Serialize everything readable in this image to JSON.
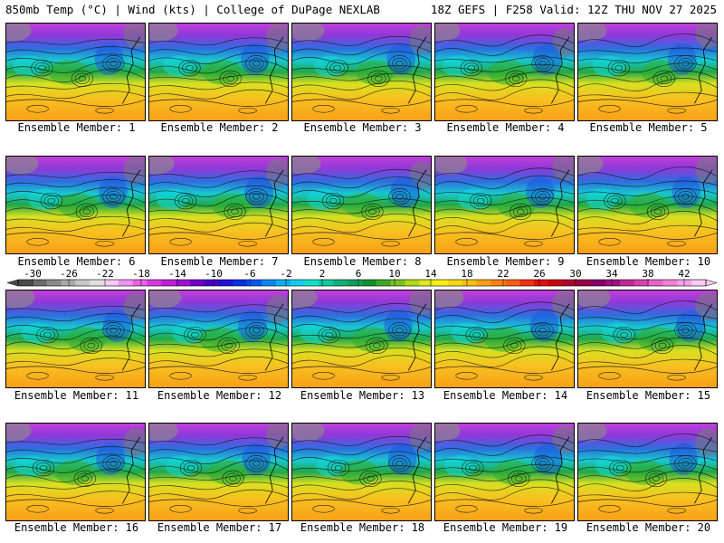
{
  "header": {
    "left": "850mb Temp (°C) | Wind (kts) | College of DuPage NEXLAB",
    "right": "18Z GEFS | F258 Valid: 12Z THU NOV 27 2025"
  },
  "members": [
    {
      "label": "Ensemble Member: 1"
    },
    {
      "label": "Ensemble Member: 2"
    },
    {
      "label": "Ensemble Member: 3"
    },
    {
      "label": "Ensemble Member: 4"
    },
    {
      "label": "Ensemble Member: 5"
    },
    {
      "label": "Ensemble Member: 6"
    },
    {
      "label": "Ensemble Member: 7"
    },
    {
      "label": "Ensemble Member: 8"
    },
    {
      "label": "Ensemble Member: 9"
    },
    {
      "label": "Ensemble Member: 10"
    },
    {
      "label": "Ensemble Member: 11"
    },
    {
      "label": "Ensemble Member: 12"
    },
    {
      "label": "Ensemble Member: 13"
    },
    {
      "label": "Ensemble Member: 14"
    },
    {
      "label": "Ensemble Member: 15"
    },
    {
      "label": "Ensemble Member: 16"
    },
    {
      "label": "Ensemble Member: 17"
    },
    {
      "label": "Ensemble Member: 18"
    },
    {
      "label": "Ensemble Member: 19"
    },
    {
      "label": "Ensemble Member: 20"
    }
  ],
  "colorbar": {
    "ticks": [
      "-30",
      "-26",
      "-22",
      "-18",
      "-14",
      "-10",
      "-6",
      "-2",
      "2",
      "6",
      "10",
      "14",
      "18",
      "22",
      "26",
      "30",
      "34",
      "38",
      "42"
    ],
    "colors": [
      "#4a4a4a",
      "#6a6a6a",
      "#8a8a8a",
      "#a8a8a8",
      "#c8c8c8",
      "#e0e0e0",
      "#f4c8f4",
      "#f090f0",
      "#e860e8",
      "#d838e0",
      "#c020d8",
      "#a010d0",
      "#7000c8",
      "#4800c8",
      "#2010d8",
      "#0830e8",
      "#0858f0",
      "#0888f0",
      "#08b0f0",
      "#10d0e8",
      "#10e0c8",
      "#10c8a0",
      "#10b078",
      "#10a058",
      "#109030",
      "#40a828",
      "#78c020",
      "#b0d818",
      "#e0e818",
      "#f8f010",
      "#f8d810",
      "#f8c010",
      "#f8a010",
      "#f88010",
      "#f86010",
      "#f03010",
      "#e01010",
      "#c80010",
      "#b00030",
      "#980048",
      "#880068",
      "#a01080",
      "#c02898",
      "#d840b0",
      "#e860c8",
      "#f080d8",
      "#f8a0e8",
      "#fcc8f4"
    ]
  }
}
